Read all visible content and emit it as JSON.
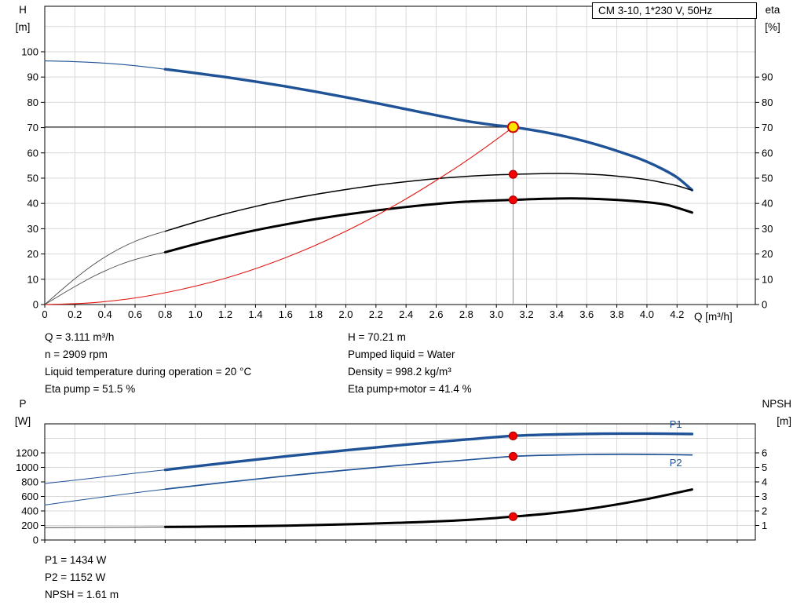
{
  "readouts": {
    "top_left": [
      "Q = 3.111 m³/h",
      "n = 2909 rpm",
      "Liquid temperature during operation = 20 °C",
      "Eta pump = 51.5 %"
    ],
    "top_right": [
      "H = 70.21 m",
      "Pumped liquid = Water",
      "Density = 998.2 kg/m³",
      "Eta pump+motor = 41.4 %"
    ],
    "bottom": [
      "P1 = 1434 W",
      "P2 = 1152 W",
      "NPSH = 1.61 m"
    ]
  },
  "colors": {
    "curve_blue": "#1f5296",
    "curve_black": "#000000",
    "curve_red": "#e01713",
    "marker_red": "#f40000",
    "marker_yellow": "#ffe400",
    "grid": "#d9d9d9"
  },
  "chart_data": [
    {
      "id": "head-efficiency-chart",
      "type": "line",
      "title": "CM 3-10, 1*230 V, 50Hz",
      "x_axis": {
        "label": "Q [m³/h]",
        "range": [
          0,
          4.72
        ],
        "grid_step": 0.2,
        "ticks": [
          "0",
          "0.2",
          "0.4",
          "0.6",
          "0.8",
          "1.0",
          "1.2",
          "1.4",
          "1.6",
          "1.8",
          "2.0",
          "2.2",
          "2.4",
          "2.6",
          "2.8",
          "3.0",
          "3.2",
          "3.4",
          "3.6",
          "3.8",
          "4.0",
          "4.2"
        ]
      },
      "y_left": {
        "label": [
          "H",
          "[m]"
        ],
        "range": [
          0,
          118
        ],
        "ticks": [
          0,
          10,
          20,
          30,
          40,
          50,
          60,
          70,
          80,
          90,
          100
        ],
        "grid": [
          10,
          20,
          30,
          40,
          50,
          60,
          70,
          80,
          90,
          100,
          110
        ]
      },
      "y_right": {
        "label": [
          "eta",
          "[%]"
        ],
        "range": [
          0,
          118
        ],
        "ticks": [
          0,
          10,
          20,
          30,
          40,
          50,
          60,
          70,
          80,
          90
        ]
      },
      "series": [
        {
          "name": "hq-curve-lead",
          "axis": "left",
          "color": "#1f5296",
          "width": 1.1,
          "points": [
            [
              0,
              96.4
            ],
            [
              0.2,
              96.1
            ],
            [
              0.4,
              95.5
            ],
            [
              0.6,
              94.5
            ],
            [
              0.8,
              93.1
            ]
          ]
        },
        {
          "name": "hq-curve",
          "axis": "left",
          "color": "#1f5296",
          "width": 3.4,
          "points": [
            [
              0.8,
              93.1
            ],
            [
              1.0,
              91.6
            ],
            [
              1.2,
              90.0
            ],
            [
              1.4,
              88.2
            ],
            [
              1.6,
              86.3
            ],
            [
              1.8,
              84.2
            ],
            [
              2.0,
              82.0
            ],
            [
              2.2,
              79.7
            ],
            [
              2.4,
              77.3
            ],
            [
              2.6,
              74.9
            ],
            [
              2.8,
              72.6
            ],
            [
              3.0,
              70.9
            ],
            [
              3.111,
              70.21
            ],
            [
              3.3,
              68.4
            ],
            [
              3.5,
              65.9
            ],
            [
              3.7,
              62.7
            ],
            [
              3.9,
              58.8
            ],
            [
              4.0,
              56.5
            ],
            [
              4.1,
              53.7
            ],
            [
              4.2,
              50.3
            ],
            [
              4.3,
              45.3
            ]
          ]
        },
        {
          "name": "eta-pump-curve-lead",
          "axis": "left",
          "color": "#4a4a4a",
          "width": 0.9,
          "points": [
            [
              0,
              0
            ],
            [
              0.1,
              5.2
            ],
            [
              0.2,
              10.2
            ],
            [
              0.3,
              14.8
            ],
            [
              0.4,
              18.8
            ],
            [
              0.5,
              22.2
            ],
            [
              0.6,
              25.0
            ],
            [
              0.7,
              27.2
            ],
            [
              0.8,
              29.0
            ]
          ]
        },
        {
          "name": "eta-pump-curve",
          "axis": "left",
          "color": "#000000",
          "width": 1.5,
          "points": [
            [
              0.8,
              29.0
            ],
            [
              1.0,
              32.6
            ],
            [
              1.2,
              35.9
            ],
            [
              1.4,
              38.8
            ],
            [
              1.6,
              41.4
            ],
            [
              1.8,
              43.6
            ],
            [
              2.0,
              45.5
            ],
            [
              2.2,
              47.2
            ],
            [
              2.4,
              48.6
            ],
            [
              2.6,
              49.8
            ],
            [
              2.8,
              50.7
            ],
            [
              3.0,
              51.3
            ],
            [
              3.111,
              51.5
            ],
            [
              3.3,
              51.8
            ],
            [
              3.5,
              51.8
            ],
            [
              3.7,
              51.3
            ],
            [
              3.9,
              50.2
            ],
            [
              4.0,
              49.4
            ],
            [
              4.1,
              48.3
            ],
            [
              4.2,
              47.0
            ],
            [
              4.3,
              45.2
            ]
          ]
        },
        {
          "name": "eta-pump-motor-curve-lead",
          "axis": "left",
          "color": "#4a4a4a",
          "width": 0.9,
          "points": [
            [
              0,
              0
            ],
            [
              0.1,
              3.6
            ],
            [
              0.2,
              7.1
            ],
            [
              0.3,
              10.4
            ],
            [
              0.4,
              13.3
            ],
            [
              0.5,
              15.8
            ],
            [
              0.6,
              17.8
            ],
            [
              0.7,
              19.4
            ],
            [
              0.8,
              20.7
            ]
          ]
        },
        {
          "name": "eta-pump-motor-curve",
          "axis": "left",
          "color": "#000000",
          "width": 3,
          "points": [
            [
              0.8,
              20.7
            ],
            [
              1.0,
              23.9
            ],
            [
              1.2,
              26.8
            ],
            [
              1.4,
              29.4
            ],
            [
              1.6,
              31.7
            ],
            [
              1.8,
              33.8
            ],
            [
              2.0,
              35.6
            ],
            [
              2.2,
              37.2
            ],
            [
              2.4,
              38.6
            ],
            [
              2.6,
              39.8
            ],
            [
              2.8,
              40.7
            ],
            [
              3.0,
              41.2
            ],
            [
              3.111,
              41.4
            ],
            [
              3.3,
              41.8
            ],
            [
              3.5,
              42.0
            ],
            [
              3.7,
              41.7
            ],
            [
              3.9,
              41.0
            ],
            [
              4.1,
              39.8
            ],
            [
              4.2,
              38.3
            ],
            [
              4.3,
              36.4
            ]
          ]
        },
        {
          "name": "system-curve",
          "axis": "left",
          "color": "#e01713",
          "width": 1.1,
          "points": [
            [
              0,
              0
            ],
            [
              0.3,
              0.65
            ],
            [
              0.6,
              2.6
            ],
            [
              0.9,
              5.9
            ],
            [
              1.2,
              10.4
            ],
            [
              1.5,
              16.3
            ],
            [
              1.8,
              23.5
            ],
            [
              2.1,
              32.0
            ],
            [
              2.4,
              41.8
            ],
            [
              2.7,
              52.9
            ],
            [
              2.9,
              61.0
            ],
            [
              3.0,
              65.3
            ],
            [
              3.111,
              70.21
            ]
          ]
        }
      ],
      "guide_lines": [
        {
          "name": "duty-head-line",
          "type": "h",
          "y": 70.21,
          "x1": 0,
          "x2": 3.111,
          "color": "#000000",
          "width": 1
        },
        {
          "name": "duty-flow-line",
          "type": "v",
          "x": 3.111,
          "y1": 0,
          "y2": 70.21,
          "color": "#8f8f8f",
          "width": 1
        }
      ],
      "markers": [
        {
          "name": "duty-point-marker",
          "x": 3.111,
          "y": 70.21,
          "axis": "left",
          "r": 6.5,
          "fill": "#ffe400",
          "stroke": "#d40000",
          "stroke_width": 2
        },
        {
          "name": "eta-pump-marker",
          "x": 3.111,
          "y": 51.5,
          "axis": "left",
          "r": 5,
          "fill": "#f40000",
          "stroke": "#aa0000",
          "stroke_width": 1.2
        },
        {
          "name": "eta-pump-motor-marker",
          "x": 3.111,
          "y": 41.4,
          "axis": "left",
          "r": 5,
          "fill": "#f40000",
          "stroke": "#aa0000",
          "stroke_width": 1.2
        }
      ]
    },
    {
      "id": "power-npsh-chart",
      "type": "line",
      "title": "",
      "x_axis": {
        "label": "",
        "range": [
          0,
          4.72
        ],
        "grid_step": 0.2,
        "ticks": []
      },
      "y_left": {
        "label": [
          "P",
          "[W]"
        ],
        "range": [
          0,
          1600
        ],
        "ticks": [
          0,
          200,
          400,
          600,
          800,
          1000,
          1200
        ],
        "grid": [
          200,
          400,
          600,
          800,
          1000,
          1200,
          1400
        ]
      },
      "y_right": {
        "label": [
          "NPSH",
          "[m]"
        ],
        "range": [
          0,
          8
        ],
        "ticks": [
          1,
          2,
          3,
          4,
          5,
          6
        ]
      },
      "series": [
        {
          "name": "p1-curve-lead",
          "axis": "left",
          "color": "#1f5296",
          "width": 1,
          "points": [
            [
              0,
              778
            ],
            [
              0.2,
              824
            ],
            [
              0.4,
              872
            ],
            [
              0.6,
              920
            ],
            [
              0.8,
              966
            ]
          ]
        },
        {
          "name": "p1-curve",
          "axis": "left",
          "color": "#1f5296",
          "width": 3.4,
          "points": [
            [
              0.8,
              966
            ],
            [
              1.2,
              1062
            ],
            [
              1.6,
              1152
            ],
            [
              2.0,
              1236
            ],
            [
              2.4,
              1314
            ],
            [
              2.8,
              1384
            ],
            [
              3.111,
              1434
            ],
            [
              3.4,
              1454
            ],
            [
              3.7,
              1464
            ],
            [
              4.0,
              1466
            ],
            [
              4.3,
              1460
            ]
          ]
        },
        {
          "name": "p2-curve-lead",
          "axis": "left",
          "color": "#1f5296",
          "width": 1,
          "points": [
            [
              0,
              482
            ],
            [
              0.2,
              540
            ],
            [
              0.4,
              596
            ],
            [
              0.6,
              650
            ],
            [
              0.8,
              700
            ]
          ]
        },
        {
          "name": "p2-curve",
          "axis": "left",
          "color": "#1f5296",
          "width": 1.7,
          "points": [
            [
              0.8,
              700
            ],
            [
              1.2,
              794
            ],
            [
              1.6,
              882
            ],
            [
              2.0,
              962
            ],
            [
              2.4,
              1036
            ],
            [
              2.8,
              1102
            ],
            [
              3.111,
              1152
            ],
            [
              3.4,
              1170
            ],
            [
              3.7,
              1180
            ],
            [
              4.0,
              1180
            ],
            [
              4.3,
              1172
            ]
          ]
        },
        {
          "name": "npsh-curve-lead",
          "axis": "right",
          "color": "#4a4a4a",
          "width": 1,
          "points": [
            [
              0,
              0.85
            ],
            [
              0.4,
              0.87
            ],
            [
              0.8,
              0.9
            ]
          ]
        },
        {
          "name": "npsh-curve",
          "axis": "right",
          "color": "#000000",
          "width": 3,
          "points": [
            [
              0.8,
              0.9
            ],
            [
              1.2,
              0.93
            ],
            [
              1.6,
              0.99
            ],
            [
              2.0,
              1.08
            ],
            [
              2.4,
              1.2
            ],
            [
              2.8,
              1.38
            ],
            [
              3.111,
              1.61
            ],
            [
              3.4,
              1.88
            ],
            [
              3.7,
              2.28
            ],
            [
              4.0,
              2.82
            ],
            [
              4.3,
              3.48
            ]
          ]
        }
      ],
      "curve_labels": [
        {
          "text": "P1",
          "x": 4.15,
          "y": 1548,
          "axis": "left",
          "color": "#1f5296"
        },
        {
          "text": "P2",
          "x": 4.15,
          "y": 1015,
          "axis": "left",
          "color": "#1f5296"
        }
      ],
      "markers": [
        {
          "name": "p1-marker",
          "x": 3.111,
          "y": 1434,
          "axis": "left",
          "r": 5,
          "fill": "#f40000",
          "stroke": "#aa0000",
          "stroke_width": 1.2
        },
        {
          "name": "p2-marker",
          "x": 3.111,
          "y": 1152,
          "axis": "left",
          "r": 5,
          "fill": "#f40000",
          "stroke": "#aa0000",
          "stroke_width": 1.2
        },
        {
          "name": "npsh-marker",
          "x": 3.111,
          "y": 1.61,
          "axis": "right",
          "r": 5,
          "fill": "#f40000",
          "stroke": "#aa0000",
          "stroke_width": 1.2
        }
      ]
    }
  ]
}
